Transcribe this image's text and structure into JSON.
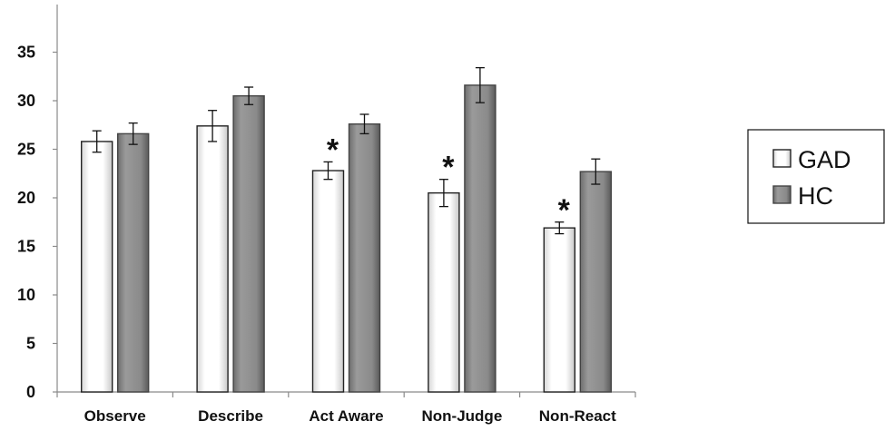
{
  "chart_data": {
    "type": "bar",
    "title": "",
    "xlabel": "",
    "ylabel": "",
    "ylim": [
      0,
      37.5
    ],
    "yticks": [
      0,
      5,
      10,
      15,
      20,
      25,
      30,
      35
    ],
    "categories": [
      "Observe",
      "Describe",
      "Act Aware",
      "Non-Judge",
      "Non-React"
    ],
    "series": [
      {
        "name": "GAD",
        "values": [
          25.8,
          27.4,
          22.8,
          20.5,
          16.9
        ],
        "error": [
          1.1,
          1.6,
          0.9,
          1.4,
          0.6
        ],
        "color": "#f4f4f4"
      },
      {
        "name": "HC",
        "values": [
          26.6,
          30.5,
          27.6,
          31.6,
          22.7
        ],
        "error": [
          1.1,
          0.9,
          1.0,
          1.8,
          1.3
        ],
        "color": "#8c8c8c"
      }
    ],
    "significance": [
      "",
      "",
      "*",
      "*",
      "*"
    ],
    "legend_position": "right",
    "grid": false
  }
}
